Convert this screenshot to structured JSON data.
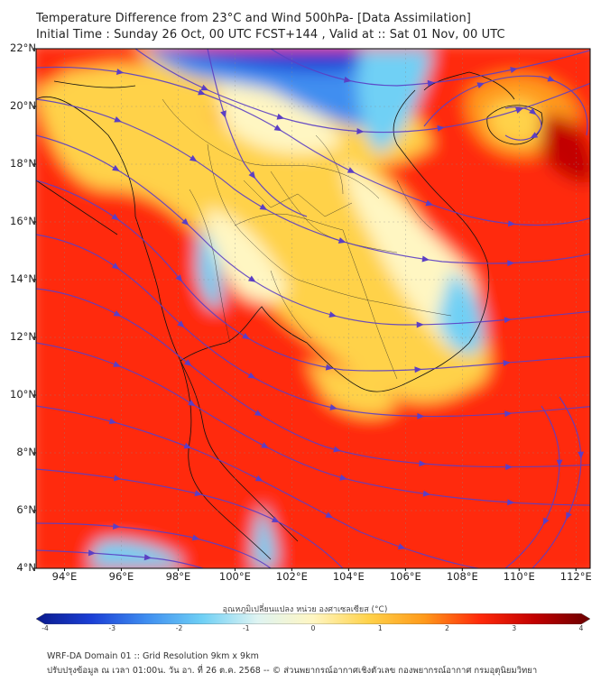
{
  "header": {
    "title_line1": "Temperature Difference from 23°C and Wind 500hPa- [Data Assimilation]",
    "title_line2": "Initial Time : Sunday 26 Oct, 00 UTC FCST+144 , Valid at ::  Sat 01 Nov, 00 UTC"
  },
  "map": {
    "lat_labels": [
      "22°N",
      "20°N",
      "18°N",
      "16°N",
      "14°N",
      "12°N",
      "10°N",
      "8°N",
      "6°N",
      "4°N"
    ],
    "lon_labels": [
      "94°E",
      "96°E",
      "98°E",
      "100°E",
      "102°E",
      "104°E",
      "106°E",
      "108°E",
      "110°E",
      "112°E"
    ],
    "lat_range": [
      4,
      22
    ],
    "lon_range": [
      93,
      112.5
    ],
    "streamline_color": "#5b3fc4",
    "coast_color": "#111111"
  },
  "colorbar": {
    "title": "อุณหภูมิเปลี่ยนแปลง หน่วย องศาเซลเซียส (°C)",
    "ticks": [
      "-4",
      "-3",
      "-2",
      "-1",
      "0",
      "1",
      "2",
      "3",
      "4"
    ],
    "range": [
      -4,
      4
    ],
    "colors": [
      "#0a1a8c",
      "#1b3fd6",
      "#3f8ef0",
      "#6fd0f5",
      "#dff4f2",
      "#fff6c2",
      "#ffd24a",
      "#ff9a1a",
      "#ff2a0a",
      "#c20000",
      "#6a0000"
    ]
  },
  "footer": {
    "line1": "WRF-DA Domain 01 :: Grid Resolution 9km x 9km",
    "line2": "ปรับปรุงข้อมูล ณ เวลา 01:00น. วัน อา. ที่ 26 ต.ค. 2568 -- © ส่วนพยากรณ์อากาศเชิงตัวเลข กองพยากรณ์อากาศ กรมอุตุนิยมวิทยา"
  }
}
